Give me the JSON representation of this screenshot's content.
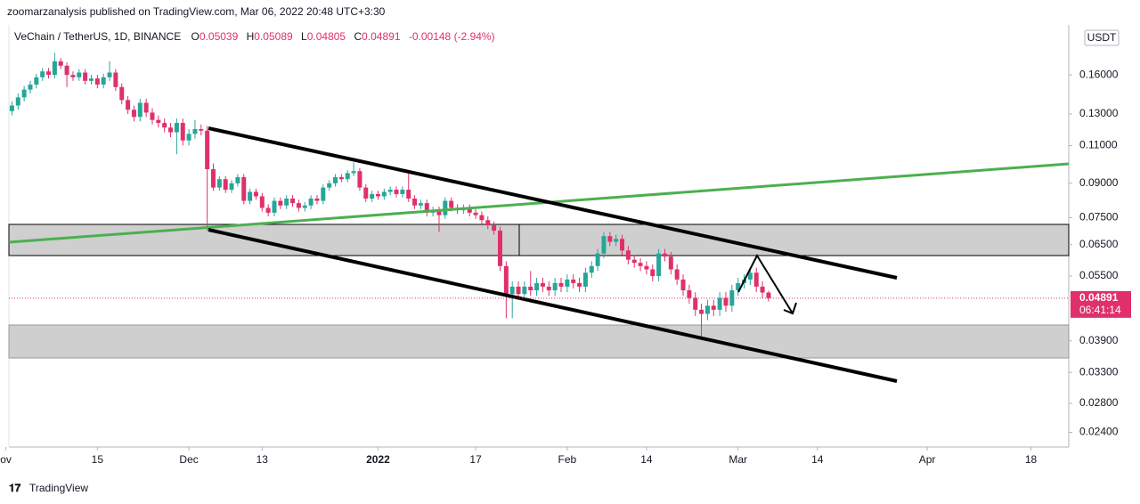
{
  "header": {
    "text": "zoomarzanalysis published on TradingView.com, Mar 06, 2022 20:48 UTC+3:30"
  },
  "legend": {
    "symbol": "VeChain / TetherUS, 1D, BINANCE",
    "o": "O",
    "h": "H",
    "l": "L",
    "c": "C",
    "change": "-0.00148 (-2.94%)"
  },
  "price_box": {
    "currency": "USDT",
    "countdown": "06:41:14"
  },
  "footer": {
    "brand": "TradingView"
  },
  "chart_data": {
    "type": "candlestick",
    "log_scale": true,
    "grid": false,
    "up_color": "#26a69a",
    "down_color": "#e0306a",
    "xlim": [
      0.5,
      174.2
    ],
    "ylim": [
      0.0222,
      0.2086
    ],
    "xticks": [
      {
        "value": 0,
        "label": "ov"
      },
      15,
      {
        "value": 30,
        "label": "Dec"
      },
      {
        "value": 42,
        "label": "13"
      },
      {
        "value": 61,
        "label": "2022"
      },
      {
        "value": 77,
        "label": "17"
      },
      {
        "value": 92,
        "label": "Feb"
      },
      {
        "value": 105,
        "label": "14"
      },
      {
        "value": 120,
        "label": "Mar"
      },
      {
        "value": 133,
        "label": "14"
      },
      {
        "value": 151,
        "label": "Apr"
      },
      {
        "value": 168,
        "label": "18"
      }
    ],
    "yticks": [
      {
        "value": 0.16,
        "label": "0.16000"
      },
      {
        "value": 0.13,
        "label": "0.13000"
      },
      {
        "value": 0.11,
        "label": "0.11000"
      },
      {
        "value": 0.09,
        "label": "0.09000"
      },
      {
        "value": 0.075,
        "label": "0.07500"
      },
      {
        "value": 0.065,
        "label": "0.06500"
      },
      {
        "value": 0.055,
        "label": "0.05500"
      },
      {
        "value": 0.039,
        "label": "0.03900"
      },
      {
        "value": 0.033,
        "label": "0.03300"
      },
      {
        "value": 0.028,
        "label": "0.02800"
      },
      {
        "value": 0.024,
        "label": "0.02400"
      }
    ],
    "x": [
      1,
      2,
      3,
      4,
      5,
      6,
      7,
      8,
      9,
      10,
      11,
      12,
      13,
      14,
      15,
      16,
      17,
      18,
      19,
      20,
      21,
      22,
      23,
      24,
      25,
      26,
      27,
      28,
      29,
      30,
      31,
      32,
      33,
      34,
      35,
      36,
      37,
      38,
      39,
      40,
      41,
      42,
      43,
      44,
      45,
      46,
      47,
      48,
      49,
      50,
      51,
      52,
      53,
      54,
      55,
      56,
      57,
      58,
      59,
      60,
      61,
      62,
      63,
      64,
      65,
      66,
      67,
      68,
      69,
      70,
      71,
      72,
      73,
      74,
      75,
      76,
      77,
      78,
      79,
      80,
      81,
      82,
      83,
      84,
      85,
      86,
      87,
      88,
      89,
      90,
      91,
      92,
      93,
      94,
      95,
      96,
      97,
      98,
      99,
      100,
      101,
      102,
      103,
      104,
      105,
      106,
      107,
      108,
      109,
      110,
      111,
      112,
      113,
      114,
      115,
      116,
      117,
      118,
      119,
      120,
      121,
      122,
      123,
      124,
      125
    ],
    "open": [
      0.132,
      0.136,
      0.142,
      0.148,
      0.152,
      0.158,
      0.163,
      0.16,
      0.172,
      0.168,
      0.16,
      0.158,
      0.162,
      0.155,
      0.157,
      0.152,
      0.158,
      0.162,
      0.15,
      0.14,
      0.133,
      0.128,
      0.138,
      0.131,
      0.126,
      0.124,
      0.121,
      0.118,
      0.124,
      0.113,
      0.117,
      0.12,
      0.119,
      0.097,
      0.088,
      0.092,
      0.087,
      0.09,
      0.093,
      0.082,
      0.086,
      0.084,
      0.079,
      0.077,
      0.082,
      0.08,
      0.083,
      0.081,
      0.079,
      0.08,
      0.083,
      0.082,
      0.088,
      0.09,
      0.093,
      0.092,
      0.095,
      0.096,
      0.088,
      0.083,
      0.085,
      0.084,
      0.086,
      0.087,
      0.085,
      0.087,
      0.083,
      0.08,
      0.081,
      0.077,
      0.078,
      0.076,
      0.082,
      0.079,
      0.078,
      0.079,
      0.077,
      0.076,
      0.074,
      0.072,
      0.07,
      0.058,
      0.05,
      0.052,
      0.05,
      0.052,
      0.051,
      0.053,
      0.052,
      0.051,
      0.053,
      0.052,
      0.054,
      0.053,
      0.052,
      0.056,
      0.058,
      0.062,
      0.068,
      0.066,
      0.067,
      0.063,
      0.06,
      0.059,
      0.058,
      0.057,
      0.055,
      0.062,
      0.061,
      0.057,
      0.054,
      0.051,
      0.049,
      0.046,
      0.045,
      0.047,
      0.046,
      0.049,
      0.047,
      0.051,
      0.053,
      0.054,
      0.056,
      0.052,
      0.05039
    ],
    "high": [
      0.139,
      0.145,
      0.151,
      0.155,
      0.161,
      0.166,
      0.166,
      0.18,
      0.175,
      0.171,
      0.163,
      0.165,
      0.165,
      0.16,
      0.16,
      0.161,
      0.172,
      0.165,
      0.153,
      0.143,
      0.136,
      0.141,
      0.141,
      0.134,
      0.129,
      0.127,
      0.124,
      0.127,
      0.127,
      0.12,
      0.126,
      0.123,
      0.122,
      0.1,
      0.0935,
      0.0935,
      0.0915,
      0.0945,
      0.0945,
      0.0875,
      0.0875,
      0.0855,
      0.0805,
      0.0835,
      0.0835,
      0.0845,
      0.0845,
      0.0825,
      0.0815,
      0.0845,
      0.0845,
      0.0895,
      0.0915,
      0.0945,
      0.0945,
      0.0965,
      0.1005,
      0.0975,
      0.0895,
      0.0865,
      0.0865,
      0.0875,
      0.0885,
      0.0885,
      0.0885,
      0.0955,
      0.0845,
      0.0825,
      0.0825,
      0.0795,
      0.0795,
      0.0835,
      0.0835,
      0.0805,
      0.0805,
      0.0805,
      0.0785,
      0.0775,
      0.0755,
      0.0735,
      0.0715,
      0.0595,
      0.0535,
      0.0535,
      0.0535,
      0.0565,
      0.0545,
      0.0545,
      0.0535,
      0.0545,
      0.0545,
      0.0555,
      0.0555,
      0.0545,
      0.0575,
      0.0595,
      0.0635,
      0.0695,
      0.0695,
      0.0685,
      0.0685,
      0.0645,
      0.0615,
      0.0605,
      0.0595,
      0.0585,
      0.0635,
      0.0635,
      0.0625,
      0.0585,
      0.0555,
      0.0525,
      0.0505,
      0.0475,
      0.0485,
      0.0485,
      0.0505,
      0.0505,
      0.0525,
      0.0545,
      0.0555,
      0.0575,
      0.0575,
      0.0535,
      0.05089
    ],
    "low": [
      0.129,
      0.133,
      0.139,
      0.145,
      0.149,
      0.155,
      0.157,
      0.157,
      0.165,
      0.15,
      0.155,
      0.155,
      0.152,
      0.152,
      0.149,
      0.149,
      0.155,
      0.147,
      0.137,
      0.13,
      0.125,
      0.125,
      0.128,
      0.123,
      0.121,
      0.118,
      0.115,
      0.105,
      0.11,
      0.11,
      0.114,
      0.116,
      0.07,
      0.0865,
      0.0865,
      0.0855,
      0.0855,
      0.0885,
      0.0805,
      0.0805,
      0.0825,
      0.0775,
      0.0755,
      0.0755,
      0.0785,
      0.0785,
      0.0795,
      0.0775,
      0.0775,
      0.0785,
      0.0805,
      0.0805,
      0.0865,
      0.0885,
      0.0905,
      0.0905,
      0.0935,
      0.0865,
      0.0815,
      0.0815,
      0.0825,
      0.0825,
      0.0845,
      0.0835,
      0.0835,
      0.0815,
      0.0785,
      0.0785,
      0.0755,
      0.0755,
      0.0695,
      0.0745,
      0.0775,
      0.0765,
      0.0765,
      0.0755,
      0.0745,
      0.0725,
      0.0705,
      0.0685,
      0.0565,
      0.044,
      0.044,
      0.0485,
      0.0485,
      0.0495,
      0.0495,
      0.0505,
      0.0495,
      0.0495,
      0.0505,
      0.0505,
      0.0515,
      0.0505,
      0.0505,
      0.0545,
      0.0565,
      0.0605,
      0.0645,
      0.0645,
      0.0615,
      0.0585,
      0.0575,
      0.0565,
      0.0555,
      0.0535,
      0.0535,
      0.0595,
      0.0555,
      0.0525,
      0.0495,
      0.0475,
      0.0445,
      0.0394,
      0.0435,
      0.0445,
      0.0445,
      0.0455,
      0.0455,
      0.0495,
      0.0515,
      0.0525,
      0.0505,
      0.0489,
      0.04805
    ],
    "close": [
      0.136,
      0.142,
      0.148,
      0.152,
      0.158,
      0.163,
      0.16,
      0.172,
      0.168,
      0.16,
      0.158,
      0.162,
      0.155,
      0.157,
      0.152,
      0.158,
      0.162,
      0.15,
      0.14,
      0.133,
      0.128,
      0.138,
      0.131,
      0.126,
      0.124,
      0.121,
      0.118,
      0.124,
      0.113,
      0.117,
      0.12,
      0.119,
      0.097,
      0.088,
      0.092,
      0.087,
      0.09,
      0.093,
      0.082,
      0.086,
      0.084,
      0.079,
      0.077,
      0.082,
      0.08,
      0.083,
      0.081,
      0.079,
      0.08,
      0.083,
      0.082,
      0.088,
      0.09,
      0.093,
      0.092,
      0.095,
      0.096,
      0.088,
      0.083,
      0.085,
      0.084,
      0.086,
      0.087,
      0.085,
      0.087,
      0.083,
      0.08,
      0.081,
      0.077,
      0.078,
      0.076,
      0.082,
      0.079,
      0.078,
      0.079,
      0.077,
      0.076,
      0.074,
      0.072,
      0.07,
      0.058,
      0.05,
      0.052,
      0.05,
      0.052,
      0.051,
      0.053,
      0.052,
      0.051,
      0.053,
      0.052,
      0.054,
      0.053,
      0.052,
      0.056,
      0.058,
      0.062,
      0.068,
      0.066,
      0.067,
      0.063,
      0.06,
      0.059,
      0.058,
      0.057,
      0.055,
      0.062,
      0.061,
      0.057,
      0.054,
      0.051,
      0.049,
      0.046,
      0.045,
      0.047,
      0.046,
      0.049,
      0.047,
      0.051,
      0.053,
      0.054,
      0.056,
      0.052,
      0.05039,
      0.04891
    ]
  }
}
